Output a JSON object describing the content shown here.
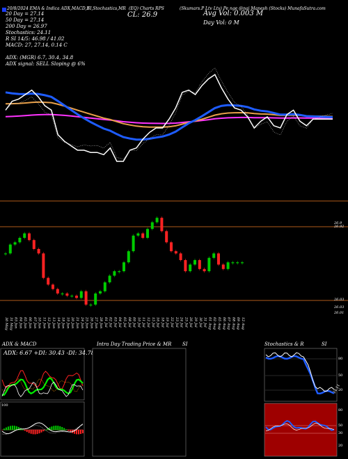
{
  "header": {
    "left": "20/8/2024 EMA & Indica ADX,MACD,B",
    "center_left": "SI,Stochastics,MR",
    "center": "(EQ) Charts RPS",
    "right": "(Skumars.P Ltv Ltv) Pe nge @nai Manesh (Stocks) MunafaSutra.com",
    "close_label": "CL: 26.9",
    "avg_vol": "Avg Vol: 0.003  M",
    "day_vol": "Day Vol: 0  M"
  },
  "legend": {
    "ema20": "20  Day = 27.14",
    "ema50": "50  Day = 27.14",
    "ema200": "200  Day = 26.97",
    "stochastics": "Stochastics: 24.11",
    "si": "R                    SI 14/5: 46.98 / 41.02",
    "macd": "MACD: 27, 27.14,  0.14  C",
    "adx": "ADX:                    (MGR) 6.7, 30.4, 34.8",
    "adx_signal": "ADX signal: SELL Sloping @ 6%"
  },
  "colors": {
    "background": "#000000",
    "close": "#ffffff",
    "ema20": "#1e5cff",
    "ema50": "#e8a04a",
    "ema200": "#ff33ff",
    "up_candle": "#00cc00",
    "down_candle": "#ff2222",
    "separator": "#b05a1a"
  },
  "price_labels": {
    "top_a": "26.9",
    "top_b": "26.92",
    "low_a": "26.03",
    "low_b": "26.03",
    "low_c": "26.01"
  },
  "dates": [
    "30 May",
    "31 May",
    "03 Jun",
    "04 Jun",
    "05 Jun",
    "06 Jun",
    "07 Jun",
    "10 Jun",
    "11 Jun",
    "12 Jun",
    "13 Jun",
    "14 Jun",
    "18 Jun",
    "19 Jun",
    "20 Jun",
    "21 Jun",
    "24 Jun",
    "25 Jun",
    "26 Jun",
    "27 Jun",
    "28 Jun",
    "01 Jul",
    "02 Jul",
    "03 Jul",
    "04 Jul",
    "05 Jul",
    "08 Jul",
    "09 Jul",
    "10 Jul",
    "11 Jul",
    "12 Jul",
    "15 Jul",
    "16 Jul",
    "18 Jul",
    "19 Jul",
    "22 Jul",
    "23 Jul",
    "24 Jul",
    "25 Jul",
    "26 Jul",
    "29 Jul",
    "30 Jul",
    "31 Jul",
    "01 Aug",
    "02 Aug",
    "05 Aug",
    "06 Aug",
    "07 Aug",
    "08 Aug",
    "09 Aug",
    "12 Aug"
  ],
  "panels": {
    "adx": {
      "title": "ADX  & MACD",
      "values_text": "ADX: 6.67 +DI: 30.43 -DI: 34.78",
      "scale_100": "100"
    },
    "intraday": {
      "title": "Intra Day Trading Price  & MR",
      "si_label": "SI"
    },
    "stoch": {
      "title": "Stochastics & R",
      "si_label": "SI",
      "ticks": [
        "80",
        "50",
        "20"
      ],
      "current": "24.11",
      "rsi_ticks": [
        "80",
        "50",
        "30",
        "20"
      ]
    }
  },
  "chart_data": {
    "type": "candlestick",
    "title": "",
    "x": [
      "30 May",
      "31 May",
      "03 Jun",
      "04 Jun",
      "05 Jun",
      "06 Jun",
      "07 Jun",
      "10 Jun",
      "11 Jun",
      "12 Jun",
      "13 Jun",
      "14 Jun",
      "18 Jun",
      "19 Jun",
      "20 Jun",
      "21 Jun",
      "24 Jun",
      "25 Jun",
      "26 Jun",
      "27 Jun",
      "28 Jun",
      "01 Jul",
      "02 Jul",
      "03 Jul",
      "04 Jul",
      "05 Jul",
      "08 Jul",
      "09 Jul",
      "10 Jul",
      "11 Jul",
      "12 Jul",
      "15 Jul",
      "16 Jul",
      "18 Jul",
      "19 Jul",
      "22 Jul",
      "23 Jul",
      "24 Jul",
      "25 Jul",
      "26 Jul",
      "29 Jul",
      "30 Jul",
      "31 Jul",
      "01 Aug",
      "02 Aug",
      "05 Aug",
      "06 Aug",
      "07 Aug",
      "08 Aug",
      "09 Aug",
      "12 Aug"
    ],
    "series": [
      {
        "values": [
          27.3,
          27.7,
          27.8,
          28.0,
          28.2,
          27.9,
          27.5,
          27.3,
          26.2,
          25.9,
          25.7,
          25.5,
          25.5,
          25.4,
          25.4,
          25.3,
          25.6,
          25.0,
          25.0,
          25.5,
          25.6,
          26.0,
          26.3,
          26.5,
          26.5,
          26.9,
          27.4,
          28.1,
          28.2,
          28.0,
          28.4,
          28.7,
          28.9,
          28.3,
          27.8,
          27.4,
          27.3,
          27.0,
          26.5,
          26.8,
          27.0,
          26.6,
          26.5,
          27.1,
          27.3,
          26.8,
          26.6,
          26.9,
          26.9,
          26.9,
          26.9
        ]
      }
    ],
    "ema": {
      "ema20": 27.14,
      "ema50": 27.14,
      "ema200": 26.97
    },
    "ylim": [
      25.0,
      29.2
    ],
    "grid": false,
    "legend": "top-left"
  }
}
